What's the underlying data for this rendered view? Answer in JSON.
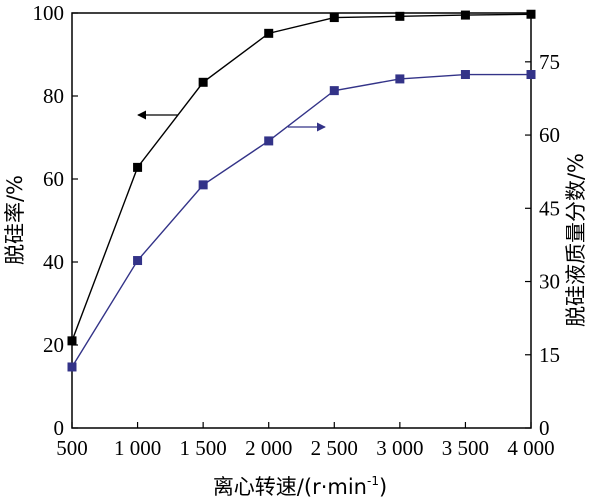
{
  "chart_data": {
    "type": "line",
    "x": [
      500,
      1000,
      1500,
      2000,
      2500,
      3000,
      3500,
      4000
    ],
    "x_tick_labels": [
      "500",
      "1 000",
      "1 500",
      "2 000",
      "2 500",
      "3 000",
      "3 500",
      "4 000"
    ],
    "xlim": [
      500,
      4000
    ],
    "xlabel_main": "离心转速/(r·min",
    "xlabel_sup": "-1",
    "xlabel_tail": ")",
    "ylabel_left": "脱硅率/%",
    "ylabel_right": "脱硅液质量分数/%",
    "ylim_left": [
      0,
      100
    ],
    "ylim_right": [
      0,
      85
    ],
    "yticks_left": [
      0,
      20,
      40,
      60,
      80,
      100
    ],
    "yticks_right": [
      0,
      15,
      30,
      45,
      60,
      75
    ],
    "series": [
      {
        "axis": "left",
        "color": "#000000",
        "marker": "square",
        "values": [
          21,
          62.8,
          83.3,
          95.1,
          98.9,
          99.2,
          99.5,
          99.7
        ]
      },
      {
        "axis": "right",
        "color": "#333388",
        "marker": "square",
        "values": [
          12.5,
          34.3,
          49.8,
          58.8,
          69.1,
          71.5,
          72.4,
          72.4
        ]
      }
    ],
    "annotations": [
      {
        "type": "arrow",
        "direction": "left",
        "points_to": "left",
        "color": "#000000"
      },
      {
        "type": "arrow",
        "direction": "right",
        "points_to": "right",
        "color": "#333388"
      }
    ],
    "grid": false
  }
}
